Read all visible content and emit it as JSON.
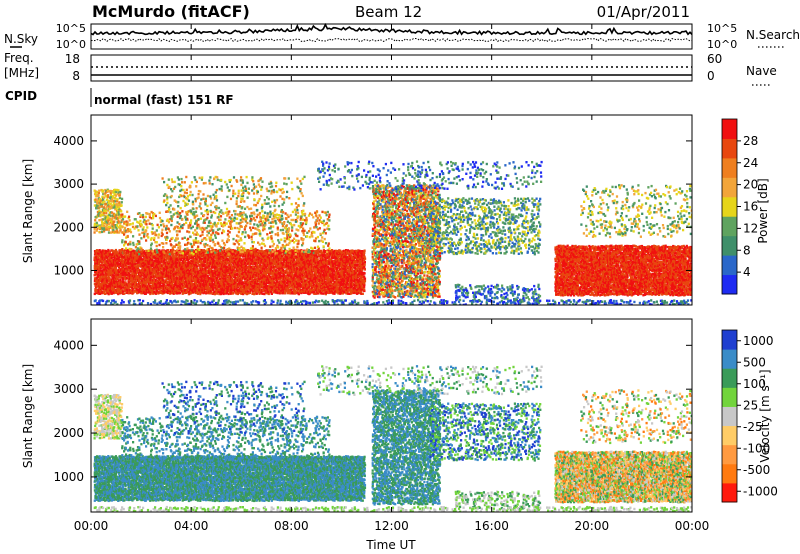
{
  "header": {
    "station": "McMurdo (fitACF)",
    "beam": "Beam 12",
    "date": "01/Apr/2011"
  },
  "strip_noise": {
    "left_label": "N.Sky",
    "right_label": "N.Search",
    "left_ticks": [
      "10^5",
      "10^0"
    ],
    "right_ticks": [
      "10^5",
      "10^0"
    ]
  },
  "strip_freq": {
    "left_label_1": "Freq.",
    "left_label_2": "[MHz]",
    "right_label": "Nave",
    "left_ticks": [
      "18",
      "8"
    ],
    "right_ticks": [
      "60",
      "0"
    ]
  },
  "strip_cpid": {
    "label": "CPID",
    "value": "normal (fast) 151 RF"
  },
  "colors": {
    "power": [
      "#1e2bf2",
      "#2a67c9",
      "#3f8f6a",
      "#5fa35f",
      "#e6d51a",
      "#f2a53a",
      "#ef7f1f",
      "#e8470f",
      "#f01010"
    ],
    "velocity": [
      "#ff1a0d",
      "#ff7a10",
      "#ff9a40",
      "#ffcc66",
      "#c8c8c8",
      "#72d43c",
      "#3a9b59",
      "#3a8cc8",
      "#1f3fd0"
    ]
  },
  "chart_data": [
    {
      "type": "heatmap",
      "name": "power",
      "xlabel": "",
      "ylabel": "Slant Range [km]",
      "yticks": [
        "1000",
        "2000",
        "3000",
        "4000"
      ],
      "ylim": [
        200,
        4600
      ],
      "xlim": [
        0,
        24
      ],
      "colorbar": {
        "label": "Power [dB]",
        "ticks": [
          "4",
          "8",
          "12",
          "16",
          "20",
          "24",
          "28"
        ],
        "range": [
          0,
          32
        ]
      }
    },
    {
      "type": "heatmap",
      "name": "velocity",
      "xlabel": "Time UT",
      "ylabel": "Slant Range [km]",
      "yticks": [
        "1000",
        "2000",
        "3000",
        "4000"
      ],
      "ylim": [
        200,
        4600
      ],
      "xlim": [
        0,
        24
      ],
      "xticks": [
        "00:00",
        "04:00",
        "08:00",
        "12:00",
        "16:00",
        "20:00",
        "00:00"
      ],
      "colorbar": {
        "label": "Velocity [m s⁻¹]",
        "ticks": [
          "1000",
          "500",
          "100",
          "25",
          "-25",
          "-100",
          "-500",
          "-1000"
        ]
      }
    }
  ]
}
